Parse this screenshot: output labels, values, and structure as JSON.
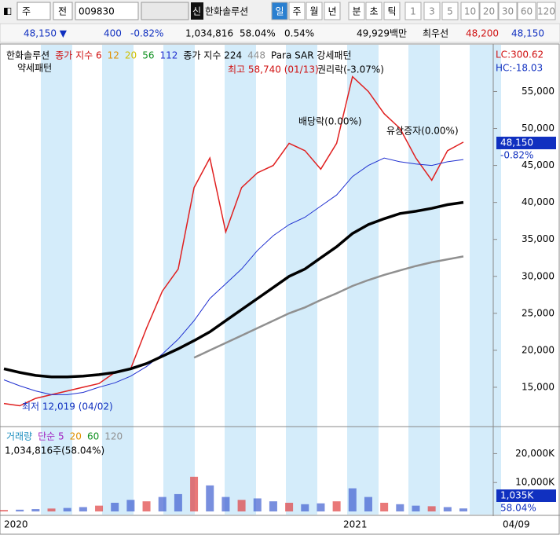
{
  "toolbar": {
    "market": "주",
    "prev": "전",
    "code": "009830",
    "credit": "신",
    "name": "한화솔루션",
    "periods": [
      "일",
      "주",
      "월",
      "년",
      "분",
      "초",
      "틱",
      "1",
      "3",
      "5",
      "10",
      "20",
      "30",
      "60",
      "120"
    ]
  },
  "quote": {
    "price": "48,150 ▼",
    "change": "400",
    "rate": "-0.82%",
    "volume": "1,034,816",
    "volume_rate": "58.04%",
    "turnover": "0.54%",
    "amount": "49,929백만",
    "best_label": "최우선",
    "ask": "48,200",
    "bid": "48,150"
  },
  "price_pane": {
    "legend": [
      "한화솔루션",
      "종가 지수 6",
      "12",
      "20",
      "56",
      "112",
      "종가 지수 224",
      "448",
      "Para SAR 강세패턴"
    ],
    "legend2": "약세패턴",
    "lc": "LC:300.62",
    "hc": "HC:-18.03",
    "high_label": "최고 58,740 (01/13)",
    "low_label": "최저 12,019 (04/02)",
    "events": [
      "권리락(-3.07%)",
      "배당락(0.00%)",
      "유상증자(0.00%)"
    ],
    "ylim": [
      10000,
      61000
    ],
    "yticks": [
      {
        "value": 15000,
        "label": "15,000"
      },
      {
        "value": 20000,
        "label": "20,000"
      },
      {
        "value": 25000,
        "label": "25,000"
      },
      {
        "value": 30000,
        "label": "30,000"
      },
      {
        "value": 35000,
        "label": "35,000"
      },
      {
        "value": 40000,
        "label": "40,000"
      },
      {
        "value": 45000,
        "label": "45,000"
      },
      {
        "value": 50000,
        "label": "50,000"
      },
      {
        "value": 55000,
        "label": "55,000"
      }
    ],
    "last_price": "48,150",
    "last_rate": "-0.82%",
    "series": [
      {
        "name": "close",
        "color": "#e02020",
        "width": 1.5,
        "values": [
          12800,
          12500,
          13500,
          14000,
          14500,
          15000,
          15500,
          17000,
          17500,
          23000,
          28000,
          31000,
          42000,
          46000,
          36000,
          42000,
          44000,
          45000,
          48000,
          47000,
          44500,
          48000,
          57000,
          55000,
          52000,
          50000,
          46000,
          43000,
          47000,
          48150
        ]
      },
      {
        "name": "ma112",
        "color": "#2030d0",
        "width": 1,
        "values": [
          16000,
          15200,
          14500,
          14000,
          14000,
          14300,
          15000,
          15600,
          16500,
          17800,
          19500,
          21500,
          24000,
          27000,
          29000,
          31000,
          33500,
          35500,
          37000,
          38000,
          39500,
          41000,
          43500,
          45000,
          46000,
          45500,
          45200,
          45000,
          45500,
          45800
        ]
      },
      {
        "name": "ma224",
        "color": "#000000",
        "width": 3.5,
        "values": [
          17500,
          17000,
          16600,
          16400,
          16400,
          16500,
          16700,
          17000,
          17500,
          18200,
          19200,
          20200,
          21300,
          22500,
          24000,
          25500,
          27000,
          28500,
          30000,
          31000,
          32500,
          34000,
          35800,
          37000,
          37800,
          38500,
          38800,
          39200,
          39700,
          40000
        ]
      },
      {
        "name": "ma448",
        "color": "#909090",
        "width": 2.5,
        "values": [
          null,
          null,
          null,
          null,
          null,
          null,
          null,
          null,
          null,
          null,
          null,
          null,
          19000,
          20000,
          21000,
          22000,
          23000,
          24000,
          25000,
          25800,
          26800,
          27700,
          28700,
          29500,
          30200,
          30800,
          31400,
          31900,
          32300,
          32700
        ]
      }
    ]
  },
  "volume_pane": {
    "legend": [
      "거래량",
      "단순 5",
      "20",
      "60",
      "120"
    ],
    "info": "1,034,816주(58.04%)",
    "ylim": [
      0,
      28000
    ],
    "yticks": [
      {
        "value": 10000,
        "label": "10,000K"
      },
      {
        "value": 20000,
        "label": "20,000K"
      }
    ],
    "last_volume": "1,035K",
    "last_rate": "58.04%",
    "values": [
      500,
      600,
      800,
      1000,
      1200,
      1500,
      2000,
      3000,
      4000,
      3500,
      5000,
      6000,
      12000,
      9000,
      5000,
      4000,
      4500,
      3500,
      3000,
      2500,
      2800,
      3500,
      8000,
      5000,
      3000,
      2500,
      2000,
      1800,
      1500,
      1035
    ]
  },
  "dates": [
    "2020",
    "2021",
    "04/09"
  ]
}
